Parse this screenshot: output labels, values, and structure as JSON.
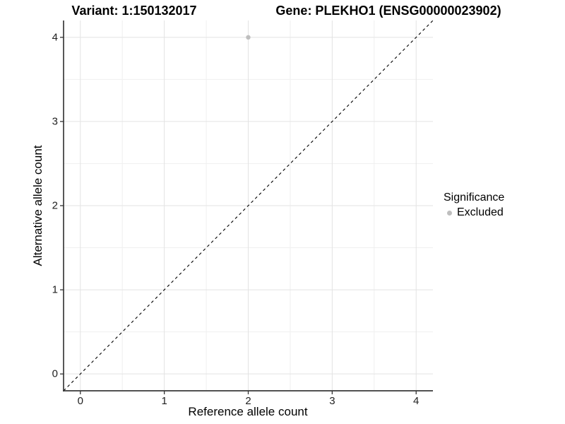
{
  "titles": {
    "variant": "Variant: 1:150132017",
    "gene": "Gene: PLEKHO1 (ENSG00000023902)"
  },
  "axes": {
    "x": {
      "label": "Reference allele count",
      "tick_labels": [
        "0",
        "1",
        "2",
        "3",
        "4"
      ]
    },
    "y": {
      "label": "Alternative allele count",
      "tick_labels": [
        "0",
        "1",
        "2",
        "3",
        "4"
      ]
    }
  },
  "legend": {
    "title": "Significance",
    "items": [
      {
        "label": "Excluded",
        "color": "#bebebe"
      }
    ]
  },
  "chart_data": {
    "type": "scatter",
    "title": "Variant: 1:150132017   Gene: PLEKHO1 (ENSG00000023902)",
    "xlabel": "Reference allele count",
    "ylabel": "Alternative allele count",
    "xlim": [
      -0.2,
      4.2
    ],
    "ylim": [
      -0.2,
      4.2
    ],
    "x_ticks": [
      0,
      1,
      2,
      3,
      4
    ],
    "y_ticks": [
      0,
      1,
      2,
      3,
      4
    ],
    "x_minor_ticks": [
      0.5,
      1.5,
      2.5,
      3.5
    ],
    "y_minor_ticks": [
      0.5,
      1.5,
      2.5,
      3.5
    ],
    "grid": true,
    "legend_position": "right",
    "series": [
      {
        "name": "Excluded",
        "color": "#bebebe",
        "point_radius": 3.2,
        "points": [
          {
            "x": 2,
            "y": 4
          }
        ]
      }
    ],
    "reference_line": {
      "type": "identity",
      "from": [
        -0.2,
        -0.2
      ],
      "to": [
        4.2,
        4.2
      ],
      "style": "dashed",
      "color": "#000000"
    }
  },
  "style_colors": {
    "major_grid": "#e3e3e3",
    "minor_grid": "#f0f0f0",
    "axis_line": "#3a3a3a",
    "tick_mark": "#333333",
    "point": "#bebebe"
  }
}
